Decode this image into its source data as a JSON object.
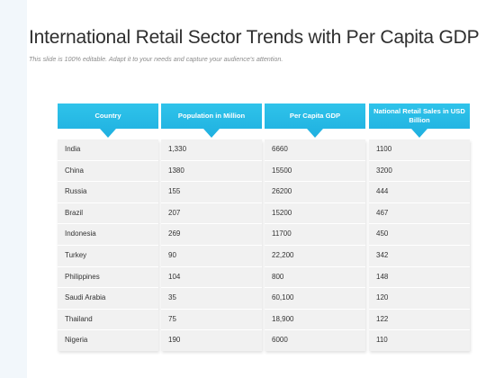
{
  "slide": {
    "title": "International Retail Sector Trends with Per Capita GDP",
    "subtitle": "This slide is 100% editable. Adapt it to your needs and capture your audience's attention."
  },
  "table": {
    "columns": [
      {
        "label": "Country",
        "cells": [
          "India",
          "China",
          "Russia",
          "Brazil",
          "Indonesia",
          "Turkey",
          "Philippines",
          "Saudi Arabia",
          "Thailand",
          "Nigeria"
        ]
      },
      {
        "label": "Population in Million",
        "cells": [
          "1,330",
          "1380",
          "155",
          "207",
          "269",
          "90",
          "104",
          "35",
          "75",
          "190"
        ]
      },
      {
        "label": "Per Capita GDP",
        "cells": [
          "6660",
          "15500",
          "26200",
          "15200",
          "11700",
          "22,200",
          "800",
          "60,100",
          "18,900",
          "6000"
        ]
      },
      {
        "label": "National Retail Sales in USD Billion",
        "cells": [
          "1100",
          "3200",
          "444",
          "467",
          "450",
          "342",
          "148",
          "120",
          "122",
          "110"
        ]
      }
    ]
  },
  "colors": {
    "header": "#1fb0e0",
    "cell_bg": "#f1f1f1",
    "text": "#333333"
  }
}
